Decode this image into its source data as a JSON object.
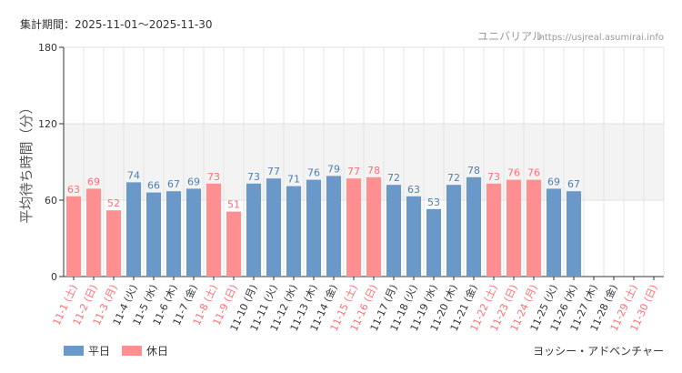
{
  "chart_data": {
    "type": "bar",
    "period_label": "集計期間：2025-11-01～2025-11-30",
    "site_name": "ユニバリアル",
    "site_url": "https://usjreal.asumirai.info",
    "ylabel": "平均待ち時間（分）",
    "ylim": [
      0,
      180
    ],
    "yticks": [
      0,
      60,
      120,
      180
    ],
    "categories": [
      "11-1 (土)",
      "11-2 (日)",
      "11-3 (月)",
      "11-4 (火)",
      "11-5 (水)",
      "11-6 (木)",
      "11-7 (金)",
      "11-8 (土)",
      "11-9 (日)",
      "11-10 (月)",
      "11-11 (火)",
      "11-12 (水)",
      "11-13 (木)",
      "11-14 (金)",
      "11-15 (土)",
      "11-16 (日)",
      "11-17 (月)",
      "11-18 (火)",
      "11-19 (水)",
      "11-20 (木)",
      "11-21 (金)",
      "11-22 (土)",
      "11-23 (日)",
      "11-24 (月)",
      "11-25 (火)",
      "11-26 (水)",
      "11-27 (木)",
      "11-28 (金)",
      "11-29 (土)",
      "11-30 (日)"
    ],
    "values": [
      63,
      69,
      52,
      74,
      66,
      67,
      69,
      73,
      51,
      73,
      77,
      71,
      76,
      79,
      77,
      78,
      72,
      63,
      53,
      72,
      78,
      73,
      76,
      76,
      69,
      67,
      null,
      null,
      null,
      null
    ],
    "day_type": [
      "holiday",
      "holiday",
      "holiday",
      "weekday",
      "weekday",
      "weekday",
      "weekday",
      "holiday",
      "holiday",
      "weekday",
      "weekday",
      "weekday",
      "weekday",
      "weekday",
      "holiday",
      "holiday",
      "weekday",
      "weekday",
      "weekday",
      "weekday",
      "weekday",
      "holiday",
      "holiday",
      "holiday",
      "weekday",
      "weekday",
      "weekday",
      "weekday",
      "holiday",
      "holiday"
    ],
    "legend": [
      {
        "key": "weekday",
        "label": "平日"
      },
      {
        "key": "holiday",
        "label": "休日"
      }
    ],
    "attraction_name": "ヨッシー・アドベンチャー",
    "colors": {
      "weekday": "#6a99c9",
      "holiday": "#ff8f91",
      "weekday_text": "#4f7faf",
      "holiday_text": "#ff6f72",
      "band": "#f3f3f3"
    }
  }
}
